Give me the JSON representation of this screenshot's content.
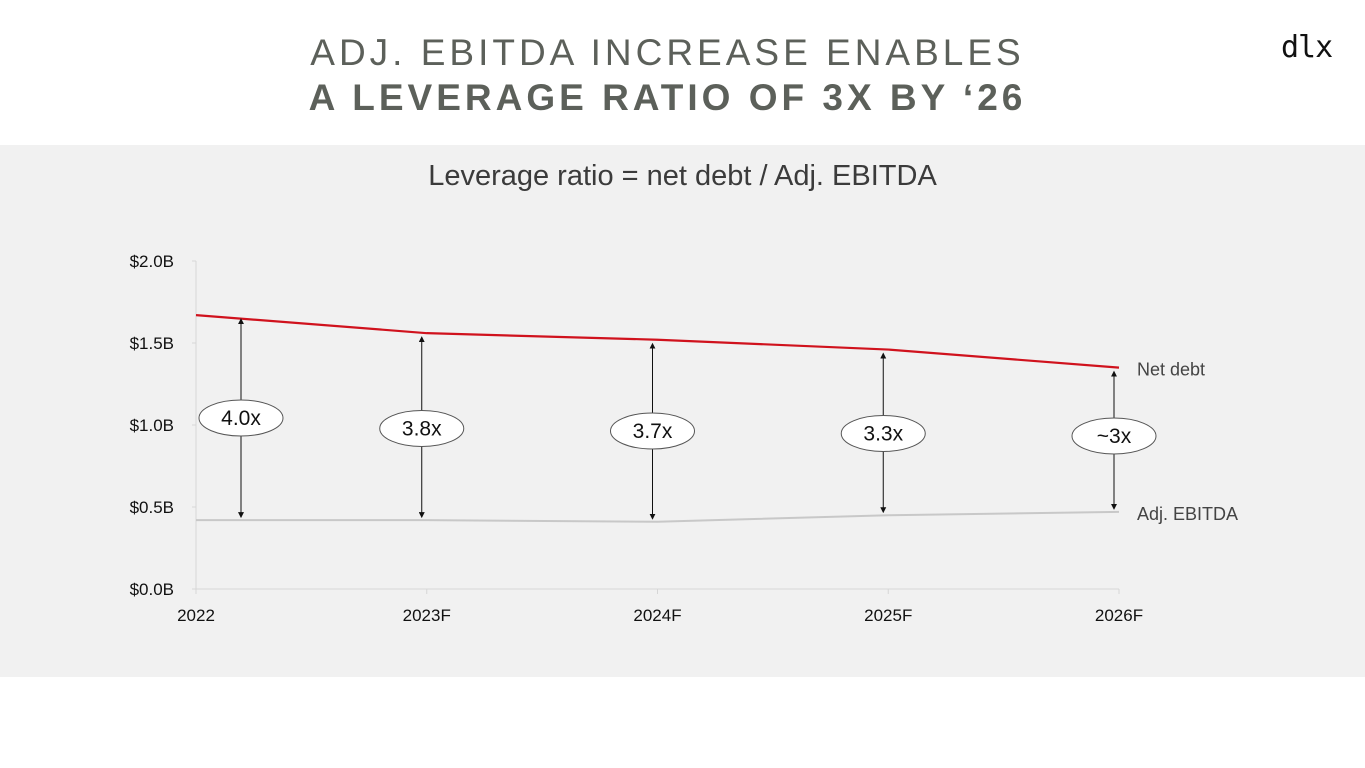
{
  "title": {
    "line1": "ADJ. EBITDA INCREASE ENABLES",
    "line2": "A LEVERAGE RATIO OF 3X BY ‘26"
  },
  "logo": "dlx",
  "chart_data": {
    "type": "line",
    "title": "Leverage ratio = net debt / Adj. EBITDA",
    "categories": [
      "2022",
      "2023F",
      "2024F",
      "2025F",
      "2026F"
    ],
    "series": [
      {
        "name": "Net debt",
        "color": "#d0121d",
        "values": [
          1.67,
          1.56,
          1.52,
          1.46,
          1.35
        ]
      },
      {
        "name": "Adj. EBITDA",
        "color": "#c8c8c8",
        "values": [
          0.42,
          0.42,
          0.41,
          0.45,
          0.47
        ]
      }
    ],
    "ratio_labels": [
      "4.0x",
      "3.8x",
      "3.7x",
      "3.3x",
      "~3x"
    ],
    "yticks": [
      0,
      0.5,
      1.0,
      1.5,
      2.0
    ],
    "ytick_labels": [
      "$0.0B",
      "$0.5B",
      "$1.0B",
      "$1.5B",
      "$2.0B"
    ],
    "ylim": [
      0,
      2.0
    ],
    "xlabel": "",
    "ylabel": ""
  }
}
